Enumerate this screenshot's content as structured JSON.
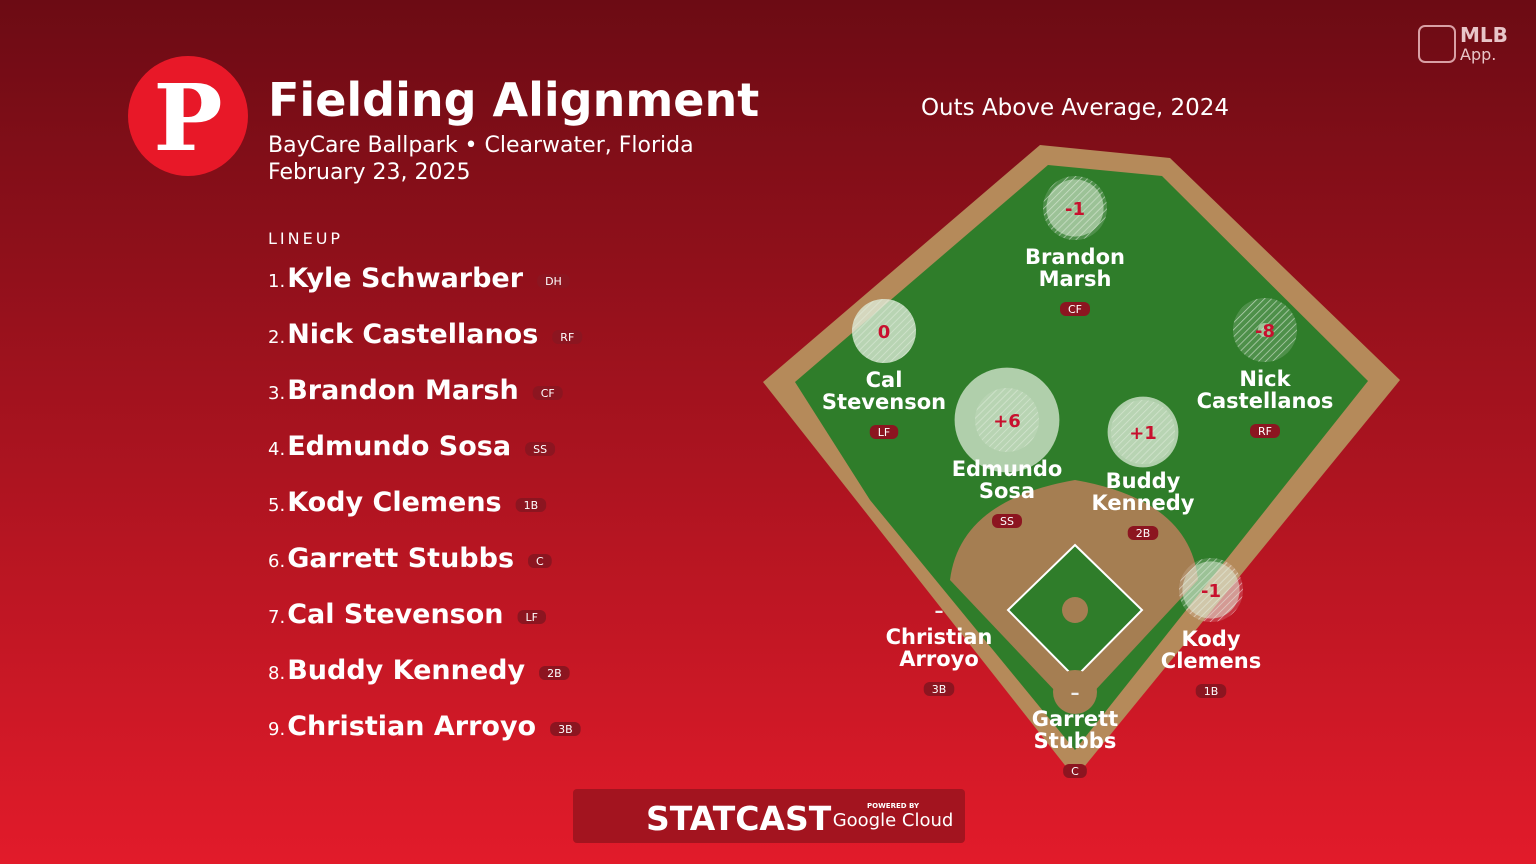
{
  "header": {
    "team_logo": "P",
    "title": "Fielding Alignment",
    "venue": "BayCare Ballpark • Clearwater, Florida",
    "date": "February 23, 2025"
  },
  "app_logo": {
    "line1": "MLB",
    "line2": "App."
  },
  "lineup": {
    "label": "LINEUP",
    "entries": [
      {
        "number": "1.",
        "name": "Kyle Schwarber",
        "position": "DH"
      },
      {
        "number": "2.",
        "name": "Nick Castellanos",
        "position": "RF"
      },
      {
        "number": "3.",
        "name": "Brandon Marsh",
        "position": "CF"
      },
      {
        "number": "4.",
        "name": "Edmundo Sosa",
        "position": "SS"
      },
      {
        "number": "5.",
        "name": "Kody Clemens",
        "position": "1B"
      },
      {
        "number": "6.",
        "name": "Garrett Stubbs",
        "position": "C"
      },
      {
        "number": "7.",
        "name": "Cal Stevenson",
        "position": "LF"
      },
      {
        "number": "8.",
        "name": "Buddy Kennedy",
        "position": "2B"
      },
      {
        "number": "9.",
        "name": "Christian Arroyo",
        "position": "3B"
      }
    ]
  },
  "field": {
    "title": "Outs Above Average, 2024",
    "players": [
      {
        "name_lines": [
          "Brandon",
          "Marsh"
        ],
        "position": "CF",
        "oaa": {
          "value": -1,
          "label": "-1"
        }
      },
      {
        "name_lines": [
          "Cal",
          "Stevenson"
        ],
        "position": "LF",
        "oaa": 0
      },
      {
        "name_lines": [
          "Nick",
          "Castellanos"
        ],
        "position": "RF",
        "oaa": -8
      },
      {
        "name_lines": [
          "Edmundo",
          "Sosa"
        ],
        "position": "SS",
        "oaa": {
          "value": 6,
          "label": "+6"
        }
      },
      {
        "name_lines": [
          "Buddy",
          "Kennedy"
        ],
        "position": "2B",
        "oaa": {
          "value": 1,
          "label": "+1"
        }
      },
      {
        "name_lines": [
          "Kody",
          "Clemens"
        ],
        "position": "1B",
        "oaa": {
          "value": -1,
          "label": "-1"
        }
      },
      {
        "name_lines": [
          "Christian",
          "Arroyo"
        ],
        "position": "3B",
        "oaa": {
          "value": null,
          "label": "–"
        }
      },
      {
        "name_lines": [
          "Garrett",
          "Stubbs"
        ],
        "position": "C",
        "oaa": {
          "value": null,
          "label": "–"
        }
      }
    ]
  },
  "footer": {
    "brand": "STATCAST",
    "powered_by": "POWERED BY",
    "partner": "Google Cloud"
  }
}
